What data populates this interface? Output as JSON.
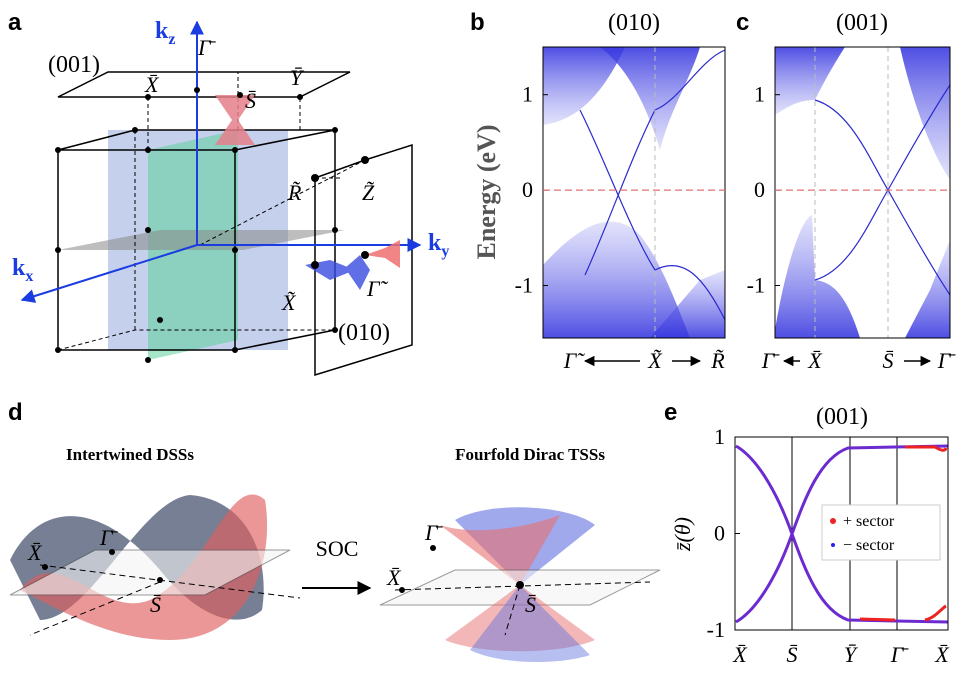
{
  "panels": {
    "a": {
      "label": "a",
      "plane_001": "(001)",
      "plane_010": "(010)",
      "kz": {
        "base": "k",
        "sub": "z"
      },
      "kx": {
        "base": "k",
        "sub": "x"
      },
      "ky": {
        "base": "k",
        "sub": "y"
      },
      "points": {
        "X_bar": "X̄",
        "Gamma_bar": "Γ̄",
        "S_bar": "S̄",
        "Y_bar": "Ȳ",
        "R_tilde": "R̃",
        "Z_tilde": "Z̃",
        "X_tilde": "X̃",
        "Gamma_tilde": "Γ̃"
      }
    },
    "b": {
      "label": "b",
      "title": "(010)",
      "ylabel": "Energy (eV)",
      "ylim": [
        -1.55,
        1.5
      ],
      "yticks": [
        -1,
        0,
        1
      ],
      "xlabels": [
        "Γ̃",
        "X̃",
        "R̃"
      ]
    },
    "c": {
      "label": "c",
      "title": "(001)",
      "ylim": [
        -1.55,
        1.5
      ],
      "yticks": [
        -1,
        0,
        1
      ],
      "xlabels": [
        "Γ̄",
        "X̄",
        "S̄",
        "Γ̄"
      ]
    },
    "d": {
      "label": "d",
      "left_title": "Intertwined DSSs",
      "right_title": "Fourfold Dirac TSSs",
      "arrow_label": "SOC",
      "left_points": [
        "X̄",
        "Γ̄",
        "S̄"
      ],
      "right_points": [
        "X̄",
        "Γ̄",
        "S̄"
      ]
    },
    "e": {
      "label": "e",
      "title": "(001)",
      "ylabel": "z̄(θ)",
      "ylim": [
        -1,
        1
      ],
      "yticks": [
        -1,
        0,
        1
      ],
      "xlabels": [
        "X̄",
        "S̄",
        "Ȳ",
        "Γ̄",
        "X̄"
      ],
      "legend": [
        "+ sector",
        "− sector"
      ]
    }
  }
}
